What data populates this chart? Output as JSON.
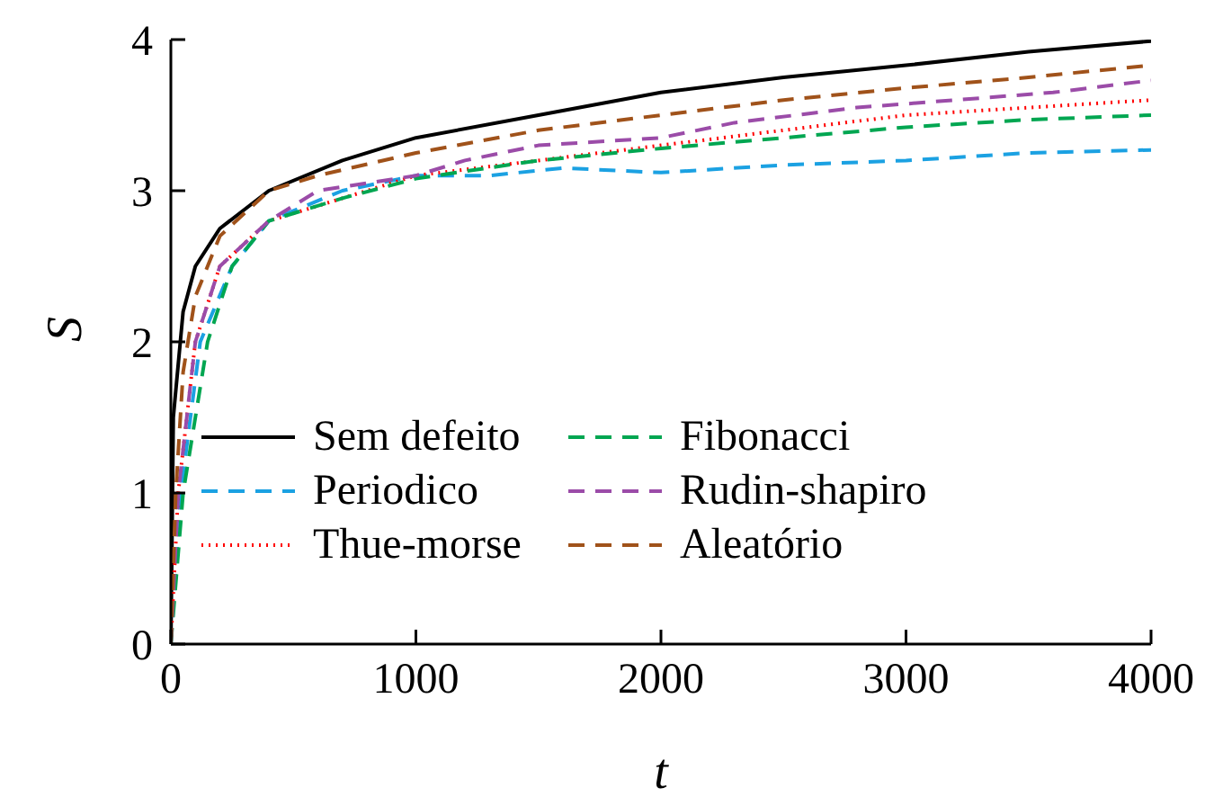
{
  "chart_data": {
    "type": "line",
    "xlabel": "t",
    "ylabel": "S",
    "xlim": [
      0,
      4000
    ],
    "ylim": [
      0,
      4
    ],
    "xticks": [
      0,
      1000,
      2000,
      3000,
      4000
    ],
    "yticks": [
      0,
      1,
      2,
      3,
      4
    ],
    "grid": false,
    "legend": "bottom",
    "marker": "none",
    "series": [
      {
        "name": "Sem defeito",
        "color": "#000000",
        "line_style": "solid",
        "x": [
          0,
          10,
          50,
          100,
          200,
          400,
          700,
          1000,
          1500,
          2000,
          2500,
          3000,
          3500,
          4000
        ],
        "values": [
          0,
          1.5,
          2.2,
          2.5,
          2.75,
          3.0,
          3.2,
          3.35,
          3.5,
          3.65,
          3.75,
          3.83,
          3.92,
          3.99
        ]
      },
      {
        "name": "Periodico",
        "color": "#1ba1e2",
        "line_style": "dashed",
        "x": [
          0,
          40,
          120,
          250,
          400,
          700,
          1000,
          1300,
          1600,
          2000,
          2500,
          3000,
          3500,
          4000
        ],
        "values": [
          0,
          1.0,
          2.0,
          2.5,
          2.8,
          3.0,
          3.1,
          3.1,
          3.15,
          3.12,
          3.17,
          3.2,
          3.25,
          3.27
        ]
      },
      {
        "name": "Thue-morse",
        "color": "#ff0000",
        "line_style": "dotted",
        "x": [
          0,
          30,
          100,
          200,
          400,
          700,
          1000,
          1500,
          2000,
          2500,
          3000,
          3500,
          4000
        ],
        "values": [
          0,
          1.0,
          2.0,
          2.5,
          2.8,
          2.95,
          3.1,
          3.2,
          3.3,
          3.4,
          3.5,
          3.55,
          3.6
        ]
      },
      {
        "name": "Fibonacci",
        "color": "#00a651",
        "line_style": "dashed",
        "x": [
          0,
          50,
          150,
          250,
          400,
          700,
          1000,
          1500,
          2000,
          2500,
          3000,
          3500,
          4000
        ],
        "values": [
          0,
          1.0,
          2.0,
          2.5,
          2.8,
          2.95,
          3.08,
          3.2,
          3.28,
          3.35,
          3.42,
          3.47,
          3.5
        ]
      },
      {
        "name": "Rudin-shapiro",
        "color": "#9b4ca8",
        "line_style": "dashed",
        "x": [
          0,
          30,
          100,
          200,
          400,
          600,
          800,
          1000,
          1200,
          1500,
          2000,
          2300,
          2800,
          3200,
          3600,
          4000
        ],
        "values": [
          0,
          1.0,
          2.0,
          2.5,
          2.8,
          3.0,
          3.05,
          3.1,
          3.2,
          3.3,
          3.35,
          3.45,
          3.55,
          3.6,
          3.65,
          3.73
        ]
      },
      {
        "name": "Aleatório",
        "color": "#a0521a",
        "line_style": "dashed",
        "x": [
          0,
          20,
          50,
          100,
          200,
          400,
          600,
          1000,
          1500,
          2000,
          2500,
          3000,
          3500,
          4000
        ],
        "values": [
          0,
          1.0,
          1.8,
          2.3,
          2.7,
          3.0,
          3.1,
          3.25,
          3.4,
          3.5,
          3.6,
          3.68,
          3.75,
          3.83
        ]
      }
    ]
  }
}
